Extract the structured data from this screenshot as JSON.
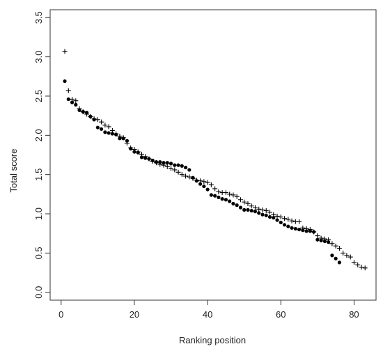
{
  "chart_data": {
    "type": "scatter",
    "title": "",
    "xlabel": "Ranking position",
    "ylabel": "Total score",
    "xlim": [
      -3,
      86
    ],
    "ylim": [
      -0.1,
      3.6
    ],
    "x_ticks": [
      0,
      20,
      40,
      60,
      80
    ],
    "y_ticks": [
      0.0,
      0.5,
      1.0,
      1.5,
      2.0,
      2.5,
      3.0,
      3.5
    ],
    "x_tick_labels": [
      "0",
      "20",
      "40",
      "60",
      "80"
    ],
    "y_tick_labels": [
      "0.0",
      "0.5",
      "1.0",
      "1.5",
      "2.0",
      "2.5",
      "3.0",
      "3.5"
    ],
    "grid": false,
    "legend": "none",
    "series": [
      {
        "marker": "filled-circle",
        "color": "#000000",
        "x": [
          1,
          2,
          3,
          4,
          5,
          6,
          7,
          8,
          9,
          10,
          11,
          12,
          13,
          14,
          15,
          16,
          17,
          18,
          19,
          20,
          21,
          22,
          23,
          24,
          25,
          26,
          27,
          28,
          29,
          30,
          31,
          32,
          33,
          34,
          35,
          36,
          37,
          38,
          39,
          40,
          41,
          42,
          43,
          44,
          45,
          46,
          47,
          48,
          49,
          50,
          51,
          52,
          53,
          54,
          55,
          56,
          57,
          58,
          59,
          60,
          61,
          62,
          63,
          64,
          65,
          66,
          67,
          68,
          69,
          70,
          71,
          72,
          73,
          74,
          75,
          76
        ],
        "y": [
          2.69,
          2.46,
          2.42,
          2.39,
          2.32,
          2.3,
          2.29,
          2.24,
          2.2,
          2.1,
          2.08,
          2.04,
          2.03,
          2.02,
          2.01,
          1.96,
          1.96,
          1.93,
          1.83,
          1.79,
          1.78,
          1.72,
          1.71,
          1.7,
          1.68,
          1.66,
          1.66,
          1.65,
          1.65,
          1.64,
          1.62,
          1.62,
          1.61,
          1.59,
          1.56,
          1.46,
          1.42,
          1.38,
          1.35,
          1.31,
          1.24,
          1.23,
          1.21,
          1.19,
          1.18,
          1.16,
          1.13,
          1.11,
          1.08,
          1.05,
          1.05,
          1.04,
          1.03,
          1.01,
          0.99,
          0.98,
          0.96,
          0.95,
          0.92,
          0.89,
          0.86,
          0.84,
          0.82,
          0.81,
          0.8,
          0.79,
          0.78,
          0.78,
          0.77,
          0.67,
          0.66,
          0.65,
          0.64,
          0.47,
          0.43,
          0.38
        ]
      },
      {
        "marker": "plus",
        "color": "#000000",
        "x": [
          1,
          2,
          3,
          4,
          5,
          6,
          7,
          8,
          9,
          10,
          11,
          12,
          13,
          14,
          15,
          16,
          17,
          18,
          19,
          20,
          21,
          22,
          23,
          24,
          25,
          26,
          27,
          28,
          29,
          30,
          31,
          32,
          33,
          34,
          35,
          36,
          37,
          38,
          39,
          40,
          41,
          42,
          43,
          44,
          45,
          46,
          47,
          48,
          49,
          50,
          51,
          52,
          53,
          54,
          55,
          56,
          57,
          58,
          59,
          60,
          61,
          62,
          63,
          64,
          65,
          66,
          67,
          68,
          69,
          70,
          71,
          72,
          73,
          74,
          75,
          76,
          77,
          78,
          79,
          80,
          81,
          82,
          83
        ],
        "y": [
          3.07,
          2.57,
          2.46,
          2.44,
          2.34,
          2.3,
          2.27,
          2.24,
          2.21,
          2.2,
          2.17,
          2.13,
          2.11,
          2.06,
          2.02,
          1.99,
          1.97,
          1.9,
          1.84,
          1.82,
          1.79,
          1.76,
          1.73,
          1.7,
          1.67,
          1.65,
          1.63,
          1.62,
          1.6,
          1.58,
          1.56,
          1.53,
          1.5,
          1.48,
          1.47,
          1.45,
          1.43,
          1.42,
          1.41,
          1.4,
          1.37,
          1.32,
          1.28,
          1.27,
          1.27,
          1.25,
          1.24,
          1.22,
          1.18,
          1.15,
          1.13,
          1.1,
          1.08,
          1.06,
          1.05,
          1.04,
          1.02,
          0.99,
          0.97,
          0.96,
          0.94,
          0.93,
          0.91,
          0.9,
          0.9,
          0.82,
          0.81,
          0.8,
          0.77,
          0.72,
          0.69,
          0.68,
          0.67,
          0.62,
          0.59,
          0.56,
          0.5,
          0.47,
          0.45,
          0.38,
          0.35,
          0.32,
          0.31
        ]
      }
    ]
  }
}
